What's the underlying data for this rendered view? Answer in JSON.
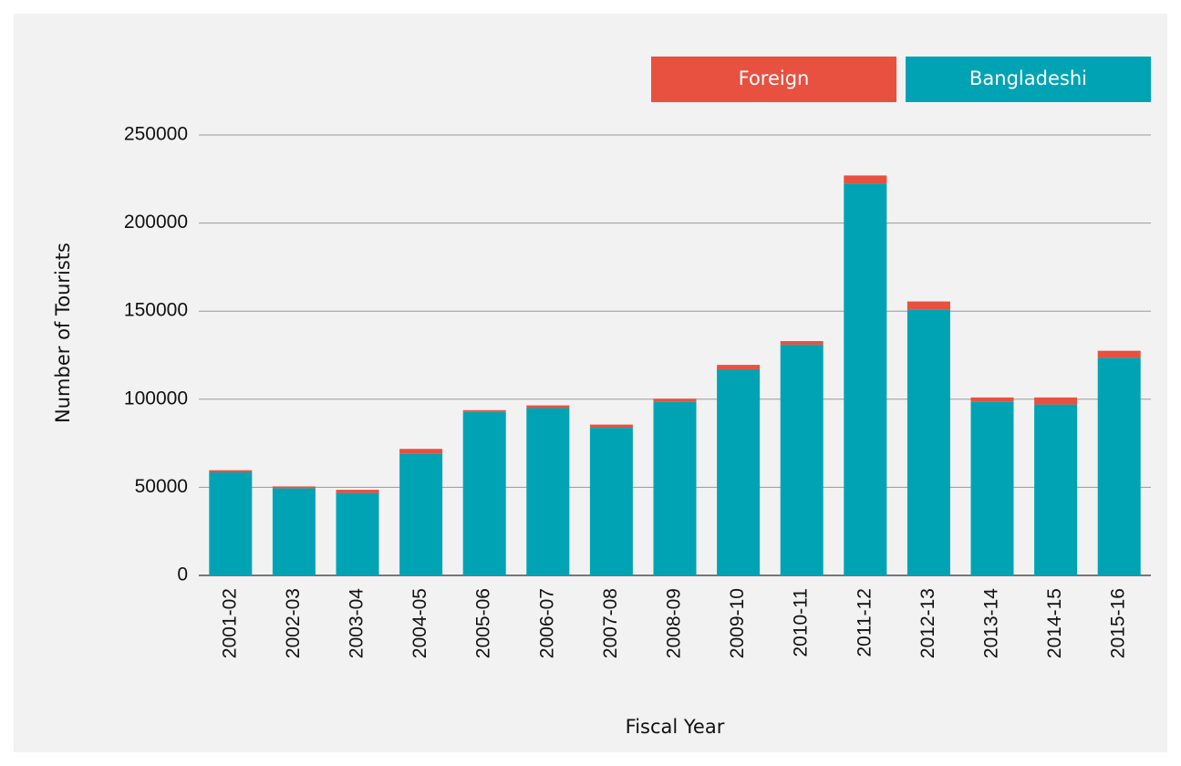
{
  "chart_data": {
    "type": "stacked_bar",
    "x_label": "Fiscal Year",
    "y_label": "Number of Tourists",
    "categories": [
      "2001-02",
      "2002-03",
      "2003-04",
      "2004-05",
      "2005-06",
      "2006-07",
      "2007-08",
      "2008-09",
      "2009-10",
      "2010-11",
      "2011-12",
      "2012-13",
      "2013-14",
      "2014-15",
      "2015-16"
    ],
    "series": [
      {
        "name": "Bangladeshi",
        "color": "#00a3b4",
        "values": [
          58500,
          49500,
          46800,
          69000,
          92800,
          95000,
          83800,
          98500,
          117000,
          131000,
          222500,
          151000,
          98500,
          97000,
          123500
        ]
      },
      {
        "name": "Foreign",
        "color": "#e85040",
        "values": [
          1200,
          1000,
          1800,
          2800,
          1000,
          1500,
          1800,
          1800,
          2500,
          2000,
          4500,
          4500,
          2500,
          4000,
          4000
        ]
      }
    ],
    "ylim": [
      0,
      250000
    ],
    "yticks": [
      0,
      50000,
      100000,
      150000,
      200000,
      250000
    ],
    "grid": true,
    "legend": "top-right"
  }
}
